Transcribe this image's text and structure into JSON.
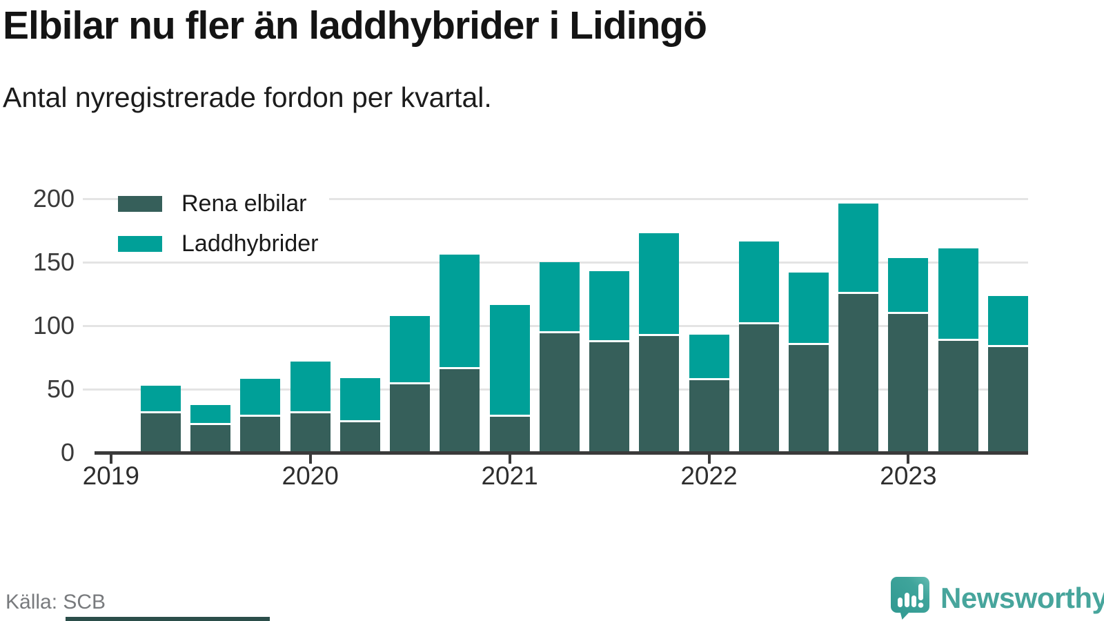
{
  "title": "Elbilar nu fler än laddhybrider i Lidingö",
  "subtitle": "Antal nyregistrerade fordon per kvartal.",
  "source": "Källa: SCB",
  "brand": {
    "name": "Newsworthy",
    "text_color": "#47a59c",
    "icon": "newsworthy-speech-bubble-chart-icon"
  },
  "colors": {
    "elbilar": "#365f5a",
    "laddhybrider": "#00a098",
    "grid": "#e4e4e4",
    "axis": "#3a3a3a",
    "muted_text": "#787a7d"
  },
  "chart_data": {
    "type": "bar",
    "stacked": true,
    "title": "Elbilar nu fler än laddhybrider i Lidingö",
    "subtitle": "Antal nyregistrerade fordon per kvartal.",
    "categories": [
      "2019 K2",
      "2019 K3",
      "2019 K4",
      "2020 K1",
      "2020 K2",
      "2020 K3",
      "2020 K4",
      "2021 K1",
      "2021 K2",
      "2021 K3",
      "2021 K4",
      "2022 K1",
      "2022 K2",
      "2022 K3",
      "2022 K4",
      "2023 K1",
      "2023 K2",
      "2023 K3"
    ],
    "series": [
      {
        "name": "Rena elbilar",
        "color": "#365f5a",
        "values": [
          31,
          22,
          28,
          31,
          24,
          54,
          66,
          28,
          94,
          87,
          92,
          57,
          101,
          85,
          125,
          109,
          88,
          83
        ]
      },
      {
        "name": "Laddhybrider",
        "color": "#00a098",
        "values": [
          22,
          16,
          30,
          41,
          35,
          54,
          90,
          88,
          56,
          56,
          81,
          36,
          65,
          57,
          71,
          44,
          73,
          40
        ]
      }
    ],
    "totals": [
      53,
      38,
      58,
      72,
      59,
      108,
      156,
      116,
      150,
      143,
      173,
      93,
      166,
      142,
      196,
      153,
      161,
      123
    ],
    "ylim": [
      0,
      200
    ],
    "yticks": [
      0,
      50,
      100,
      150,
      200
    ],
    "x_year_ticks": [
      "2019",
      "2020",
      "2021",
      "2022",
      "2023"
    ],
    "grid": true,
    "legend_position": "top-left-inside"
  }
}
